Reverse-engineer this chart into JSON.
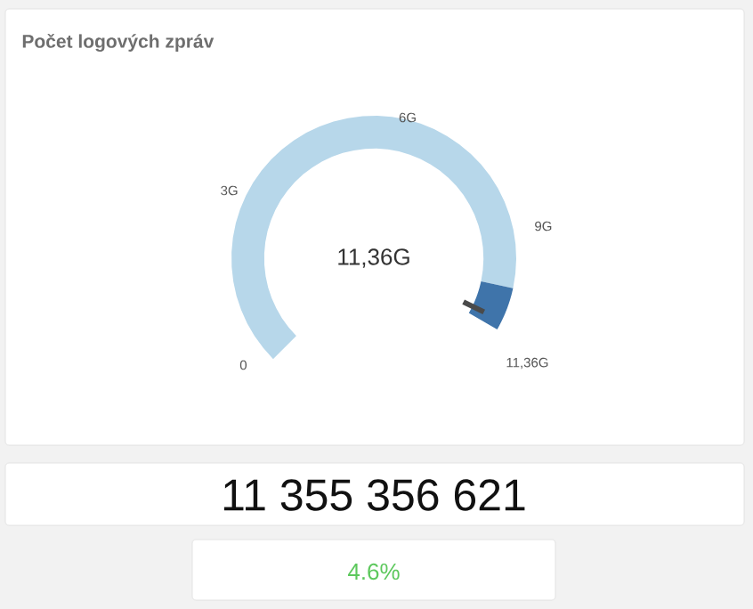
{
  "chart_data": {
    "type": "donut",
    "title": "Počet logových zpráv",
    "categories": [
      null,
      null
    ],
    "values": [
      93,
      7
    ],
    "colors": [
      "#b7d7ea",
      "#3f74aa"
    ],
    "annotations": [
      "0",
      "3G",
      "6G",
      "9G",
      "11,36G",
      "11,36G",
      "11 355 356 621",
      "4.6%"
    ]
  }
}
